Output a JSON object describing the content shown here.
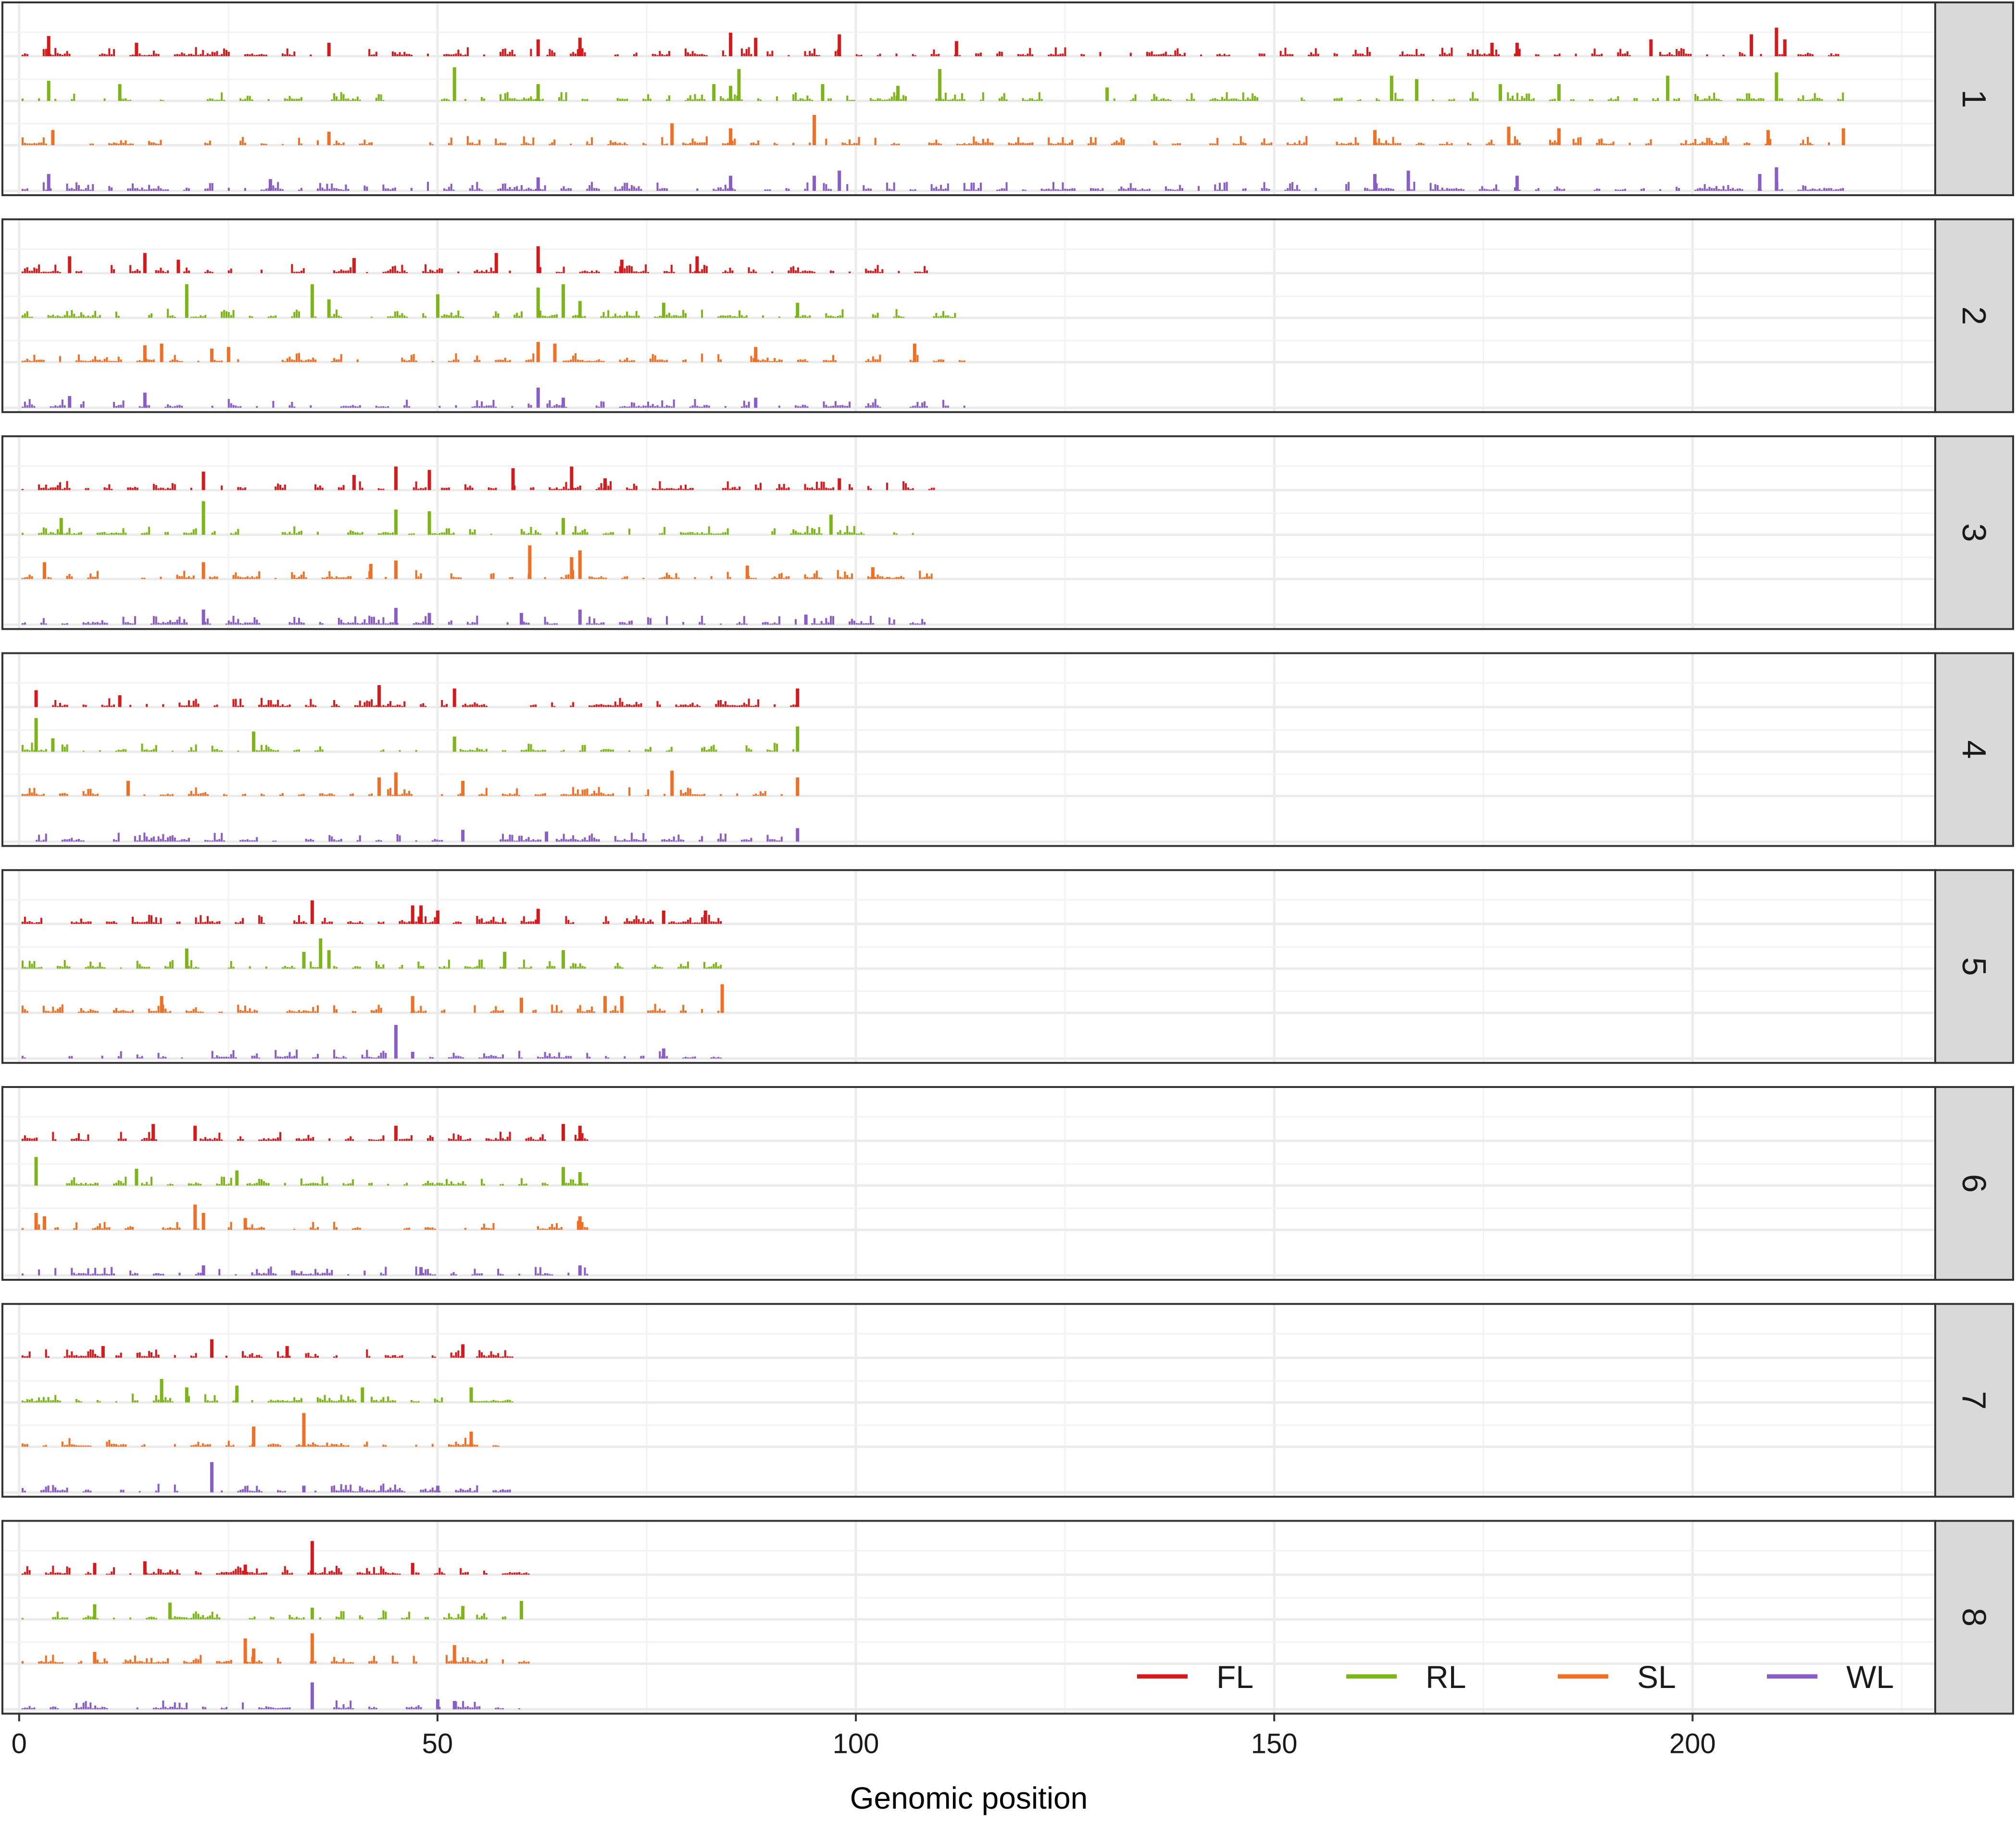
{
  "chart_data": {
    "type": "bar",
    "title": "",
    "xlabel": "Genomic position",
    "ylabel": "",
    "xlim": [
      -2,
      229
    ],
    "x_ticks": [
      0,
      50,
      100,
      150,
      200
    ],
    "x_tick_labels": [
      "0",
      "50",
      "100",
      "150",
      "200"
    ],
    "grid": true,
    "facet_by": "chromosome",
    "legend": {
      "position": "bottom-right",
      "entries": [
        {
          "key": "FL",
          "label": "FL",
          "color": "#D7191C"
        },
        {
          "key": "RL",
          "label": "RL",
          "color": "#7CB518"
        },
        {
          "key": "SL",
          "label": "SL",
          "color": "#F26E22"
        },
        {
          "key": "WL",
          "label": "WL",
          "color": "#8A5CC7"
        }
      ]
    },
    "value_scale": "relative, 0-1 within track",
    "panels": [
      {
        "label": "1",
        "x_end": 218,
        "series": [
          {
            "key": "FL",
            "peaks": [
              [
                3.5,
                0.6
              ],
              [
                14,
                0.4
              ],
              [
                37,
                0.4
              ],
              [
                62,
                0.5
              ],
              [
                67,
                0.55
              ],
              [
                85,
                0.7
              ],
              [
                88,
                0.55
              ],
              [
                98,
                0.65
              ],
              [
                112,
                0.45
              ],
              [
                176,
                0.4
              ],
              [
                179,
                0.4
              ],
              [
                195,
                0.5
              ],
              [
                207,
                0.65
              ],
              [
                210,
                0.85
              ],
              [
                211,
                0.5
              ]
            ]
          },
          {
            "key": "RL",
            "peaks": [
              [
                3.5,
                0.6
              ],
              [
                12,
                0.5
              ],
              [
                52,
                1.0
              ],
              [
                62,
                0.5
              ],
              [
                83,
                0.5
              ],
              [
                85,
                0.45
              ],
              [
                86,
                0.95
              ],
              [
                96,
                0.5
              ],
              [
                105,
                0.45
              ],
              [
                110,
                0.95
              ],
              [
                130,
                0.4
              ],
              [
                164,
                0.75
              ],
              [
                167,
                0.65
              ],
              [
                177,
                0.5
              ],
              [
                184,
                0.5
              ],
              [
                197,
                0.75
              ],
              [
                210,
                0.85
              ]
            ]
          },
          {
            "key": "SL",
            "peaks": [
              [
                4,
                0.45
              ],
              [
                37,
                0.4
              ],
              [
                78,
                0.65
              ],
              [
                85,
                0.5
              ],
              [
                95,
                0.9
              ],
              [
                162,
                0.45
              ],
              [
                178,
                0.55
              ],
              [
                184,
                0.5
              ],
              [
                209,
                0.45
              ],
              [
                218,
                0.5
              ]
            ]
          },
          {
            "key": "WL",
            "peaks": [
              [
                3.5,
                0.5
              ],
              [
                30,
                0.35
              ],
              [
                62,
                0.4
              ],
              [
                85,
                0.45
              ],
              [
                95,
                0.45
              ],
              [
                98,
                0.6
              ],
              [
                162,
                0.5
              ],
              [
                166,
                0.6
              ],
              [
                179,
                0.45
              ],
              [
                208,
                0.5
              ],
              [
                210,
                0.7
              ]
            ]
          }
        ]
      },
      {
        "label": "2",
        "x_end": 113,
        "series": [
          {
            "key": "FL",
            "peaks": [
              [
                6,
                0.5
              ],
              [
                15,
                0.6
              ],
              [
                19,
                0.4
              ],
              [
                40,
                0.45
              ],
              [
                57,
                0.6
              ],
              [
                62,
                0.8
              ],
              [
                72,
                0.4
              ],
              [
                81,
                0.5
              ]
            ]
          },
          {
            "key": "RL",
            "peaks": [
              [
                20,
                1.0
              ],
              [
                35,
                1.0
              ],
              [
                37,
                0.55
              ],
              [
                50,
                0.7
              ],
              [
                62,
                0.9
              ],
              [
                65,
                1.0
              ],
              [
                67,
                0.5
              ],
              [
                77,
                0.45
              ],
              [
                93,
                0.45
              ]
            ]
          },
          {
            "key": "SL",
            "peaks": [
              [
                15,
                0.5
              ],
              [
                17,
                0.55
              ],
              [
                23,
                0.4
              ],
              [
                25,
                0.45
              ],
              [
                62,
                0.6
              ],
              [
                64,
                0.55
              ],
              [
                88,
                0.45
              ],
              [
                107,
                0.55
              ]
            ]
          },
          {
            "key": "WL",
            "peaks": [
              [
                6,
                0.35
              ],
              [
                15,
                0.45
              ],
              [
                62,
                0.6
              ],
              [
                65,
                0.3
              ],
              [
                88,
                0.3
              ]
            ]
          }
        ]
      },
      {
        "label": "3",
        "x_end": 110,
        "series": [
          {
            "key": "FL",
            "peaks": [
              [
                22,
                0.55
              ],
              [
                40,
                0.45
              ],
              [
                45,
                0.7
              ],
              [
                49,
                0.6
              ],
              [
                59,
                0.65
              ],
              [
                66,
                0.7
              ],
              [
                70,
                0.35
              ],
              [
                98,
                0.35
              ]
            ]
          },
          {
            "key": "RL",
            "peaks": [
              [
                5,
                0.5
              ],
              [
                22,
                1.0
              ],
              [
                45,
                0.75
              ],
              [
                49,
                0.7
              ],
              [
                65,
                0.5
              ],
              [
                97,
                0.6
              ]
            ]
          },
          {
            "key": "SL",
            "peaks": [
              [
                3,
                0.5
              ],
              [
                22,
                0.5
              ],
              [
                42,
                0.45
              ],
              [
                45,
                0.55
              ],
              [
                61,
                1.0
              ],
              [
                66,
                0.65
              ],
              [
                67,
                0.85
              ],
              [
                87,
                0.4
              ],
              [
                102,
                0.35
              ]
            ]
          },
          {
            "key": "WL",
            "peaks": [
              [
                22,
                0.45
              ],
              [
                45,
                0.5
              ],
              [
                49,
                0.35
              ],
              [
                60,
                0.35
              ],
              [
                67,
                0.45
              ],
              [
                94,
                0.3
              ]
            ]
          }
        ]
      },
      {
        "label": "4",
        "x_end": 93,
        "series": [
          {
            "key": "FL",
            "peaks": [
              [
                2,
                0.5
              ],
              [
                12,
                0.35
              ],
              [
                43,
                0.65
              ],
              [
                52,
                0.55
              ],
              [
                93,
                0.55
              ]
            ]
          },
          {
            "key": "RL",
            "peaks": [
              [
                2,
                1.0
              ],
              [
                4,
                0.4
              ],
              [
                28,
                0.6
              ],
              [
                52,
                0.45
              ],
              [
                93,
                0.75
              ]
            ]
          },
          {
            "key": "SL",
            "peaks": [
              [
                13,
                0.45
              ],
              [
                43,
                0.55
              ],
              [
                45,
                0.7
              ],
              [
                53,
                0.45
              ],
              [
                78,
                0.75
              ],
              [
                93,
                0.55
              ]
            ]
          },
          {
            "key": "WL",
            "peaks": [
              [
                53,
                0.35
              ],
              [
                63,
                0.3
              ],
              [
                93,
                0.4
              ]
            ]
          }
        ]
      },
      {
        "label": "5",
        "x_end": 84,
        "series": [
          {
            "key": "FL",
            "peaks": [
              [
                35,
                0.7
              ],
              [
                47,
                0.55
              ],
              [
                48,
                0.55
              ],
              [
                50,
                0.4
              ],
              [
                62,
                0.45
              ],
              [
                77,
                0.4
              ],
              [
                82,
                0.4
              ]
            ]
          },
          {
            "key": "RL",
            "peaks": [
              [
                20,
                0.6
              ],
              [
                34,
                0.5
              ],
              [
                36,
                0.9
              ],
              [
                37,
                0.55
              ],
              [
                58,
                0.5
              ],
              [
                65,
                0.55
              ]
            ]
          },
          {
            "key": "SL",
            "peaks": [
              [
                17,
                0.5
              ],
              [
                47,
                0.5
              ],
              [
                60,
                0.45
              ],
              [
                70,
                0.5
              ],
              [
                72,
                0.5
              ],
              [
                84,
                0.85
              ]
            ]
          },
          {
            "key": "WL",
            "peaks": [
              [
                45,
                1.0
              ],
              [
                47,
                0.2
              ],
              [
                77,
                0.3
              ]
            ]
          }
        ]
      },
      {
        "label": "6",
        "x_end": 68,
        "series": [
          {
            "key": "FL",
            "peaks": [
              [
                16,
                0.5
              ],
              [
                21,
                0.45
              ],
              [
                45,
                0.45
              ],
              [
                65,
                0.5
              ],
              [
                67,
                0.45
              ]
            ]
          },
          {
            "key": "RL",
            "peaks": [
              [
                2,
                0.85
              ],
              [
                14,
                0.5
              ],
              [
                26,
                0.45
              ],
              [
                65,
                0.55
              ],
              [
                67,
                0.4
              ]
            ]
          },
          {
            "key": "SL",
            "peaks": [
              [
                2,
                0.5
              ],
              [
                3,
                0.4
              ],
              [
                21,
                0.75
              ],
              [
                22,
                0.5
              ],
              [
                27,
                0.35
              ],
              [
                67,
                0.4
              ]
            ]
          },
          {
            "key": "WL",
            "peaks": [
              [
                22,
                0.3
              ],
              [
                48,
                0.25
              ],
              [
                67,
                0.3
              ]
            ]
          }
        ]
      },
      {
        "label": "7",
        "x_end": 59,
        "series": [
          {
            "key": "FL",
            "peaks": [
              [
                10,
                0.35
              ],
              [
                23,
                0.55
              ],
              [
                32,
                0.35
              ],
              [
                53,
                0.4
              ]
            ]
          },
          {
            "key": "RL",
            "peaks": [
              [
                17,
                0.7
              ],
              [
                20,
                0.45
              ],
              [
                26,
                0.5
              ],
              [
                41,
                0.45
              ],
              [
                54,
                0.45
              ]
            ]
          },
          {
            "key": "SL",
            "peaks": [
              [
                28,
                0.6
              ],
              [
                34,
                1.0
              ],
              [
                54,
                0.45
              ]
            ]
          },
          {
            "key": "WL",
            "peaks": [
              [
                23,
                0.9
              ],
              [
                34,
                0.2
              ],
              [
                50,
                0.2
              ]
            ]
          }
        ]
      },
      {
        "label": "8",
        "x_end": 61,
        "series": [
          {
            "key": "FL",
            "peaks": [
              [
                9,
                0.35
              ],
              [
                15,
                0.4
              ],
              [
                27,
                0.3
              ],
              [
                35,
                1.0
              ],
              [
                47,
                0.35
              ]
            ]
          },
          {
            "key": "RL",
            "peaks": [
              [
                9,
                0.45
              ],
              [
                18,
                0.5
              ],
              [
                35,
                0.35
              ],
              [
                53,
                0.4
              ],
              [
                60,
                0.55
              ]
            ]
          },
          {
            "key": "SL",
            "peaks": [
              [
                9,
                0.35
              ],
              [
                27,
                0.75
              ],
              [
                28,
                0.45
              ],
              [
                35,
                0.9
              ],
              [
                52,
                0.55
              ]
            ]
          },
          {
            "key": "WL",
            "peaks": [
              [
                35,
                0.8
              ],
              [
                50,
                0.3
              ],
              [
                52,
                0.25
              ]
            ]
          }
        ]
      }
    ]
  }
}
